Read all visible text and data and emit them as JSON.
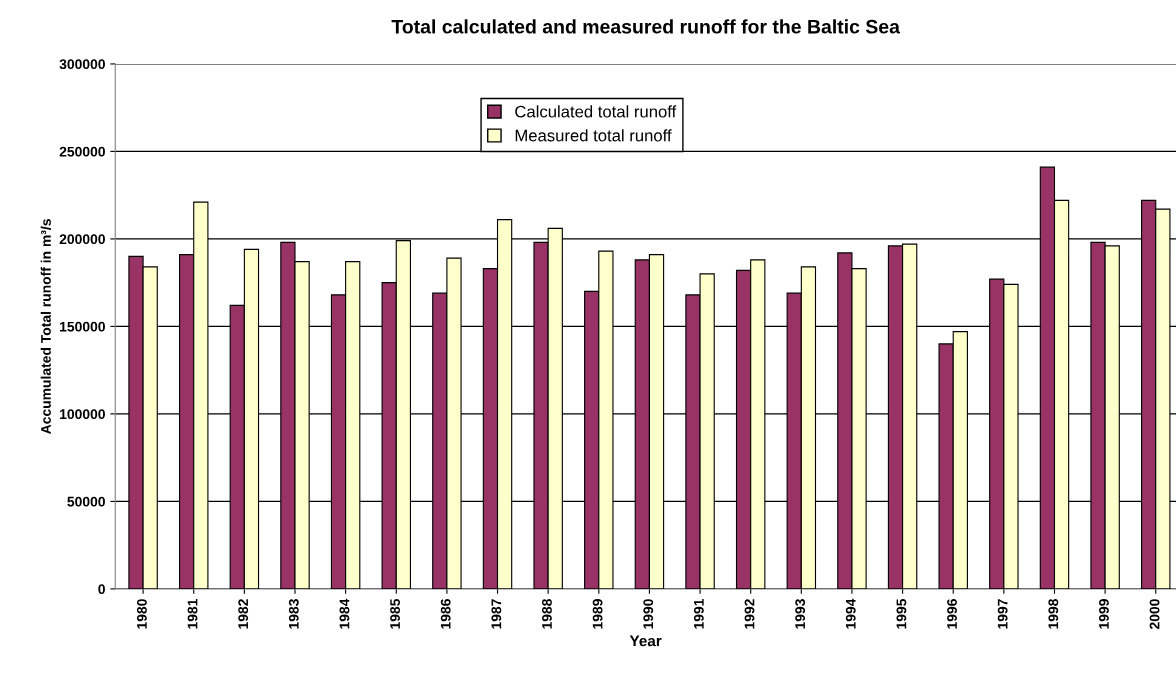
{
  "chart_data": {
    "type": "bar",
    "title": "Total calculated and measured runoff for the Baltic Sea",
    "xlabel": "Year",
    "ylabel": "Accumulated Total runoff in m³/s",
    "categories": [
      "1980",
      "1981",
      "1982",
      "1983",
      "1984",
      "1985",
      "1986",
      "1987",
      "1988",
      "1989",
      "1990",
      "1991",
      "1992",
      "1993",
      "1994",
      "1995",
      "1996",
      "1997",
      "1998",
      "1999",
      "2000"
    ],
    "series": [
      {
        "name": "Calculated total runoff",
        "color": "#993366",
        "values": [
          190000,
          191000,
          162000,
          198000,
          168000,
          175000,
          169000,
          183000,
          198000,
          170000,
          188000,
          168000,
          182000,
          169000,
          192000,
          196000,
          140000,
          177000,
          241000,
          198000,
          222000
        ]
      },
      {
        "name": "Measured total runoff",
        "color": "#ffffcc",
        "values": [
          184000,
          221000,
          194000,
          187000,
          187000,
          199000,
          189000,
          211000,
          206000,
          193000,
          191000,
          180000,
          188000,
          184000,
          183000,
          197000,
          147000,
          174000,
          222000,
          196000,
          217000
        ]
      }
    ],
    "ylim": [
      0,
      300000
    ],
    "yticks": [
      0,
      50000,
      100000,
      150000,
      200000,
      250000,
      300000
    ],
    "grid": "y",
    "legend": "top"
  }
}
